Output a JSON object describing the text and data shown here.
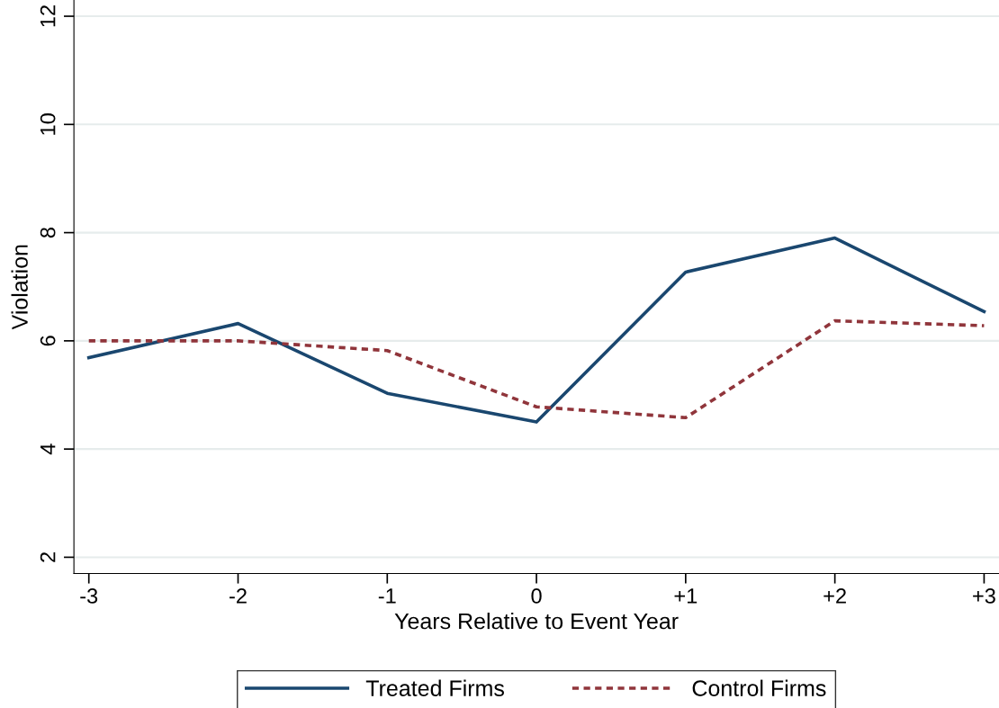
{
  "chart_data": {
    "type": "line",
    "xlabel": "Years Relative to Event Year",
    "ylabel": "Violation",
    "categories": [
      "-3",
      "-2",
      "-1",
      "0",
      "+1",
      "+2",
      "+3"
    ],
    "series": [
      {
        "name": "Treated Firms",
        "color": "#1a476f",
        "line_style": "solid",
        "values": [
          5.69,
          6.32,
          5.03,
          4.5,
          7.27,
          7.9,
          6.54
        ]
      },
      {
        "name": "Control Firms",
        "color": "#90353b",
        "line_style": "dotted",
        "values": [
          6.0,
          6.0,
          5.82,
          4.78,
          4.58,
          6.37,
          6.28
        ]
      }
    ],
    "ylim": [
      1.7,
      12.3
    ],
    "yticks": [
      2,
      4,
      6,
      8,
      10,
      12
    ],
    "grid": "y",
    "legend": "bottom"
  }
}
